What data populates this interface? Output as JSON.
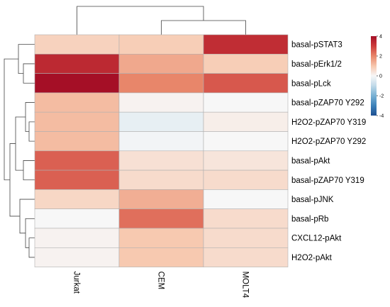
{
  "chart_data": {
    "type": "heatmap",
    "columns": [
      "Jurkat",
      "CEM",
      "MOLT4"
    ],
    "rows": [
      "basal-pSTAT3",
      "basal-pErk1/2",
      "basal-pLck",
      "basal-pZAP70 Y292",
      "H2O2-pZAP70 Y319",
      "H2O2-pZAP70 Y292",
      "basal-pAkt",
      "basal-pZAP70 Y319",
      "basal-pJNK",
      "basal-pRb",
      "CXCL12-pAkt",
      "H2O2-pAkt"
    ],
    "values": [
      [
        0.8,
        0.9,
        3.3
      ],
      [
        3.4,
        1.5,
        0.9
      ],
      [
        4.0,
        2.0,
        2.6
      ],
      [
        1.2,
        0.1,
        0.0
      ],
      [
        1.2,
        -0.3,
        0.2
      ],
      [
        1.2,
        -0.1,
        0.0
      ],
      [
        2.5,
        0.5,
        0.4
      ],
      [
        2.5,
        0.6,
        0.6
      ],
      [
        0.7,
        1.4,
        0.0
      ],
      [
        0.0,
        2.3,
        0.6
      ],
      [
        0.1,
        1.0,
        0.6
      ],
      [
        0.1,
        1.0,
        0.6
      ]
    ],
    "colorbar": {
      "min": -4,
      "max": 4,
      "ticks": [
        4,
        2,
        0,
        -2,
        -4
      ],
      "colormap": "RdBu_r"
    },
    "row_dendrogram": true,
    "col_dendrogram": true
  }
}
